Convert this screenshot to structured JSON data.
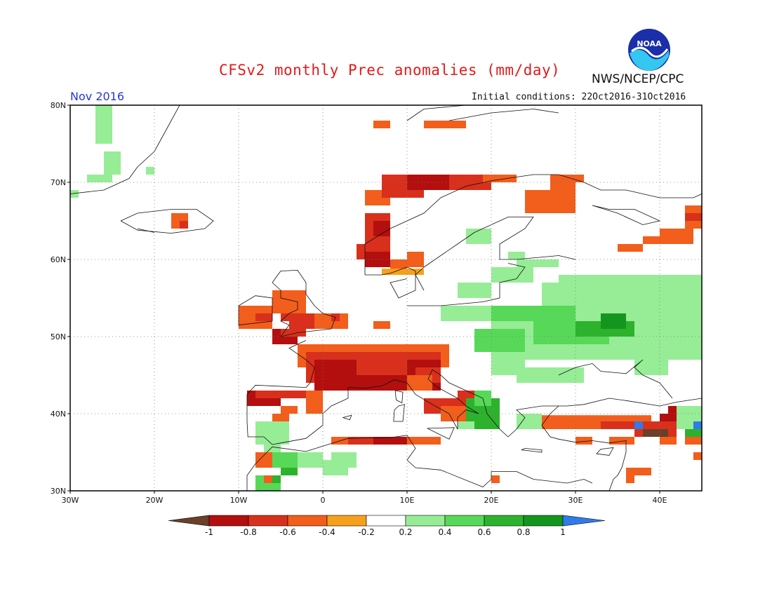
{
  "title": "CFSv2 monthly Prec anomalies (mm/day)",
  "agency": "NWS/NCEP/CPC",
  "logo_text": "NOAA",
  "forecast_month": "Nov 2016",
  "initial_conditions": "Initial conditions: 22Oct2016-31Oct2016",
  "map": {
    "lon_range": [
      -30,
      45
    ],
    "lat_range": [
      30,
      80
    ],
    "lat_labels": [
      "80N",
      "70N",
      "60N",
      "50N",
      "40N",
      "30N"
    ],
    "lon_labels": [
      "30W",
      "20W",
      "10W",
      "0",
      "10E",
      "20E",
      "30E",
      "40E"
    ]
  },
  "colorbar": {
    "labels": [
      "-1",
      "-0.8",
      "-0.6",
      "-0.4",
      "-0.2",
      "0.2",
      "0.4",
      "0.6",
      "0.8",
      "1"
    ],
    "colors": [
      "#6b3f2a",
      "#b30f0f",
      "#d8301c",
      "#f25e1c",
      "#f5a11c",
      "#ffffff",
      "#96ed96",
      "#58d858",
      "#2db22d",
      "#14961e",
      "#2f7be8"
    ]
  }
}
